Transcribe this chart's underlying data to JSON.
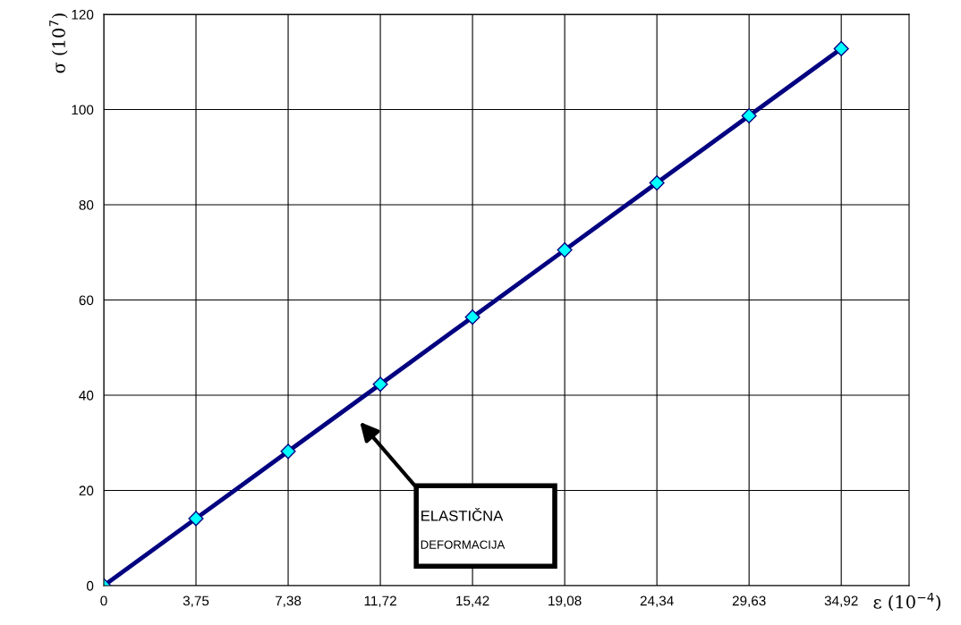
{
  "chart_data": {
    "type": "line",
    "categories": [
      "0",
      "3,75",
      "7,38",
      "11,72",
      "15,42",
      "19,08",
      "24,34",
      "29,63",
      "34,92"
    ],
    "series": [
      {
        "color": "#000080",
        "values": [
          0,
          14.1,
          28.2,
          42.3,
          56.4,
          70.5,
          84.6,
          98.7,
          112.8
        ]
      }
    ],
    "xlabel": "ε (10$^{−4}$)",
    "ylabel": "σ (10$^{7}$)",
    "ylim": [
      0,
      120
    ],
    "yticks": [
      0,
      20,
      40,
      60,
      80,
      100,
      120
    ],
    "grid": true,
    "marker": "diamond",
    "line_style": "solid",
    "annotations": [
      "ELASTIČNA",
      "DEFORMACIJA"
    ]
  }
}
